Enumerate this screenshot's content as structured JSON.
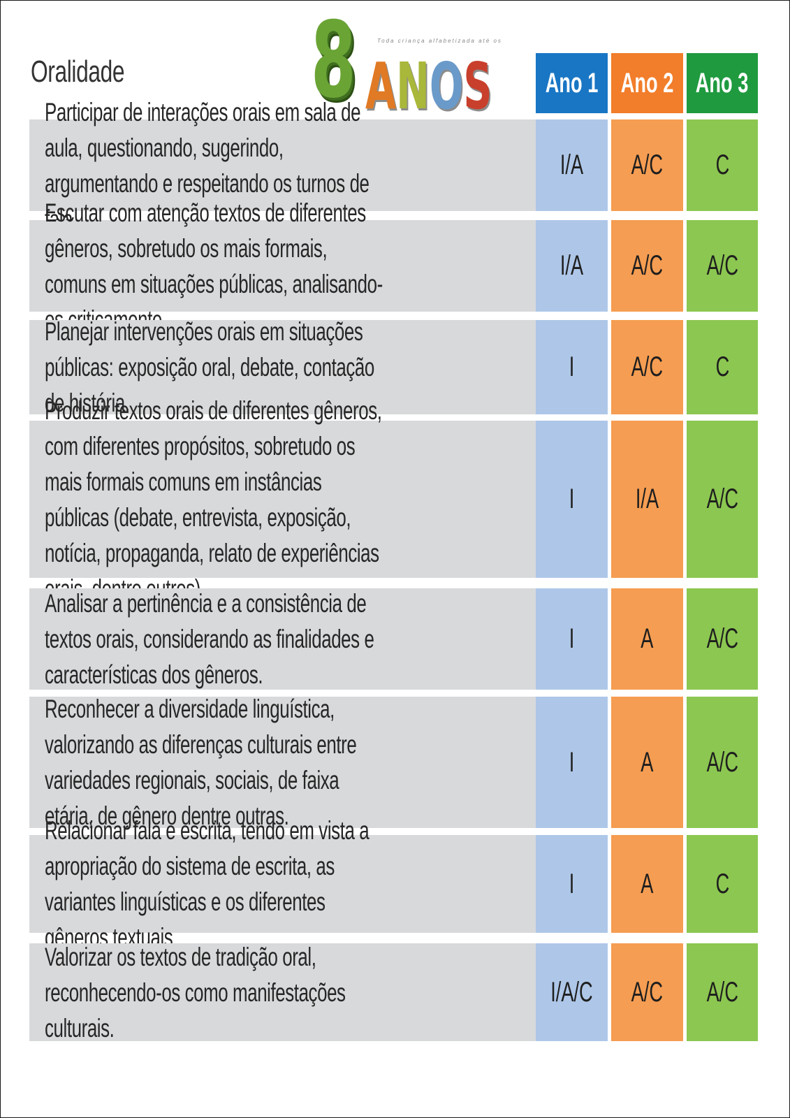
{
  "title": "Oralidade",
  "logo": {
    "number": "8",
    "word_letters": [
      "A",
      "N",
      "O",
      "S"
    ],
    "letter_colors": [
      "#e07a24",
      "#a9b73a",
      "#6a9ac9",
      "#c8402c"
    ],
    "tagline": "Toda criança alfabetizada até os"
  },
  "columns": [
    {
      "label": "Ano 1",
      "header_color": "#1976c4",
      "cell_color": "#aec7e8"
    },
    {
      "label": "Ano 2",
      "header_color": "#f27d2a",
      "cell_color": "#f59d52"
    },
    {
      "label": "Ano 3",
      "header_color": "#1f9a3f",
      "cell_color": "#8cc751"
    }
  ],
  "rows": [
    {
      "text": "Participar de interações orais em sala de aula, questionando, sugerindo, argumentando e respeitando os turnos de fala.",
      "ano1": "I/A",
      "ano2": "A/C",
      "ano3": "C"
    },
    {
      "text": "Escutar com atenção textos de diferentes gêneros, sobretudo os mais formais, comuns em situações públicas, analisando-os criticamente.",
      "ano1": "I/A",
      "ano2": "A/C",
      "ano3": "A/C"
    },
    {
      "text": "Planejar intervenções orais em situações públicas: exposição oral, debate, contação de história.",
      "ano1": "I",
      "ano2": "A/C",
      "ano3": "C"
    },
    {
      "text": "Produzir textos orais de diferentes gêneros, com diferentes propósitos, sobretudo os mais formais comuns em instâncias públicas (debate, entrevista, exposição, notícia, propaganda, relato de experiências orais, dentre outros).",
      "ano1": "I",
      "ano2": "I/A",
      "ano3": "A/C"
    },
    {
      "text": "Analisar a pertinência e a consistência de textos orais, considerando as finalidades e características dos gêneros.",
      "ano1": "I",
      "ano2": "A",
      "ano3": "A/C"
    },
    {
      "text": "Reconhecer a diversidade linguística, valorizando as diferenças culturais entre variedades regionais, sociais, de faixa etária, de gênero dentre outras.",
      "ano1": "I",
      "ano2": "A",
      "ano3": "A/C"
    },
    {
      "text": "Relacionar fala e escrita, tendo em vista a apropriação do sistema de escrita, as variantes linguísticas e os diferentes gêneros textuais.",
      "ano1": "I",
      "ano2": "A",
      "ano3": "C"
    },
    {
      "text": "Valorizar os textos de tradição oral, reconhecendo-os como manifestações culturais.",
      "ano1": "I/A/C",
      "ano2": "A/C",
      "ano3": "A/C"
    }
  ]
}
